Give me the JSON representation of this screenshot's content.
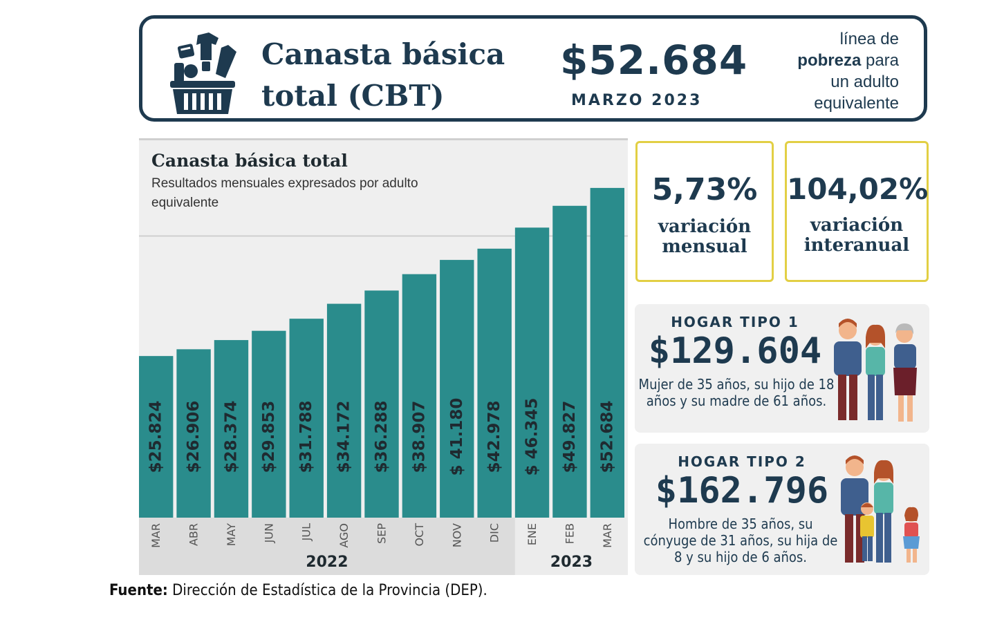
{
  "header": {
    "title": "Canasta básica total (CBT)",
    "price": "$52.684",
    "period": "MARZO 2023",
    "poverty_line": {
      "line1": "línea de",
      "bold": "pobreza",
      "line2_rest": " para",
      "line3": "un adulto",
      "line4": "equivalente"
    }
  },
  "variations": [
    {
      "value": "5,73%",
      "label_line1": "variación",
      "label_line2": "mensual"
    },
    {
      "value": "104,02%",
      "label_line1": "variación",
      "label_line2": "interanual"
    }
  ],
  "households": [
    {
      "title": "HOGAR TIPO 1",
      "price": "$129.604",
      "description": "Mujer de 35 años, su hijo de 18 años y su madre de 61 años."
    },
    {
      "title": "HOGAR TIPO 2",
      "price": "$162.796",
      "description": "Hombre de 35 años, su cónyuge de 31 años, su hija de 8 y su hijo de 6 años."
    }
  ],
  "source": {
    "label": "Fuente:",
    "text": " Dirección de Estadística de la Provincia (DEP)."
  },
  "colors": {
    "bar": "#2a8c8c",
    "dark_navy": "#1e3a4f",
    "accent_yellow": "#e2cf44"
  },
  "chart_data": {
    "type": "bar",
    "title": "Canasta básica total",
    "subtitle": "Resultados mensuales expresados por adulto equivalente",
    "categories": [
      "MAR",
      "ABR",
      "MAY",
      "JUN",
      "JUL",
      "AGO",
      "SEP",
      "OCT",
      "NOV",
      "DIC",
      "ENE",
      "FEB",
      "MAR"
    ],
    "values": [
      25824,
      26906,
      28374,
      29853,
      31788,
      34172,
      36288,
      38907,
      41180,
      42978,
      46345,
      49827,
      52684
    ],
    "value_labels": [
      "$25.824",
      "$26.906",
      "$28.374",
      "$29.853",
      "$31.788",
      "$34.172",
      "$36.288",
      "$38.907",
      "$ 41.180",
      "$42.978",
      "$ 46.345",
      "$49.827",
      "$52.684"
    ],
    "years": [
      {
        "label": "2022",
        "start_index": 0,
        "end_index": 9
      },
      {
        "label": "2023",
        "start_index": 10,
        "end_index": 12
      }
    ],
    "grid": true,
    "legend": "none"
  }
}
